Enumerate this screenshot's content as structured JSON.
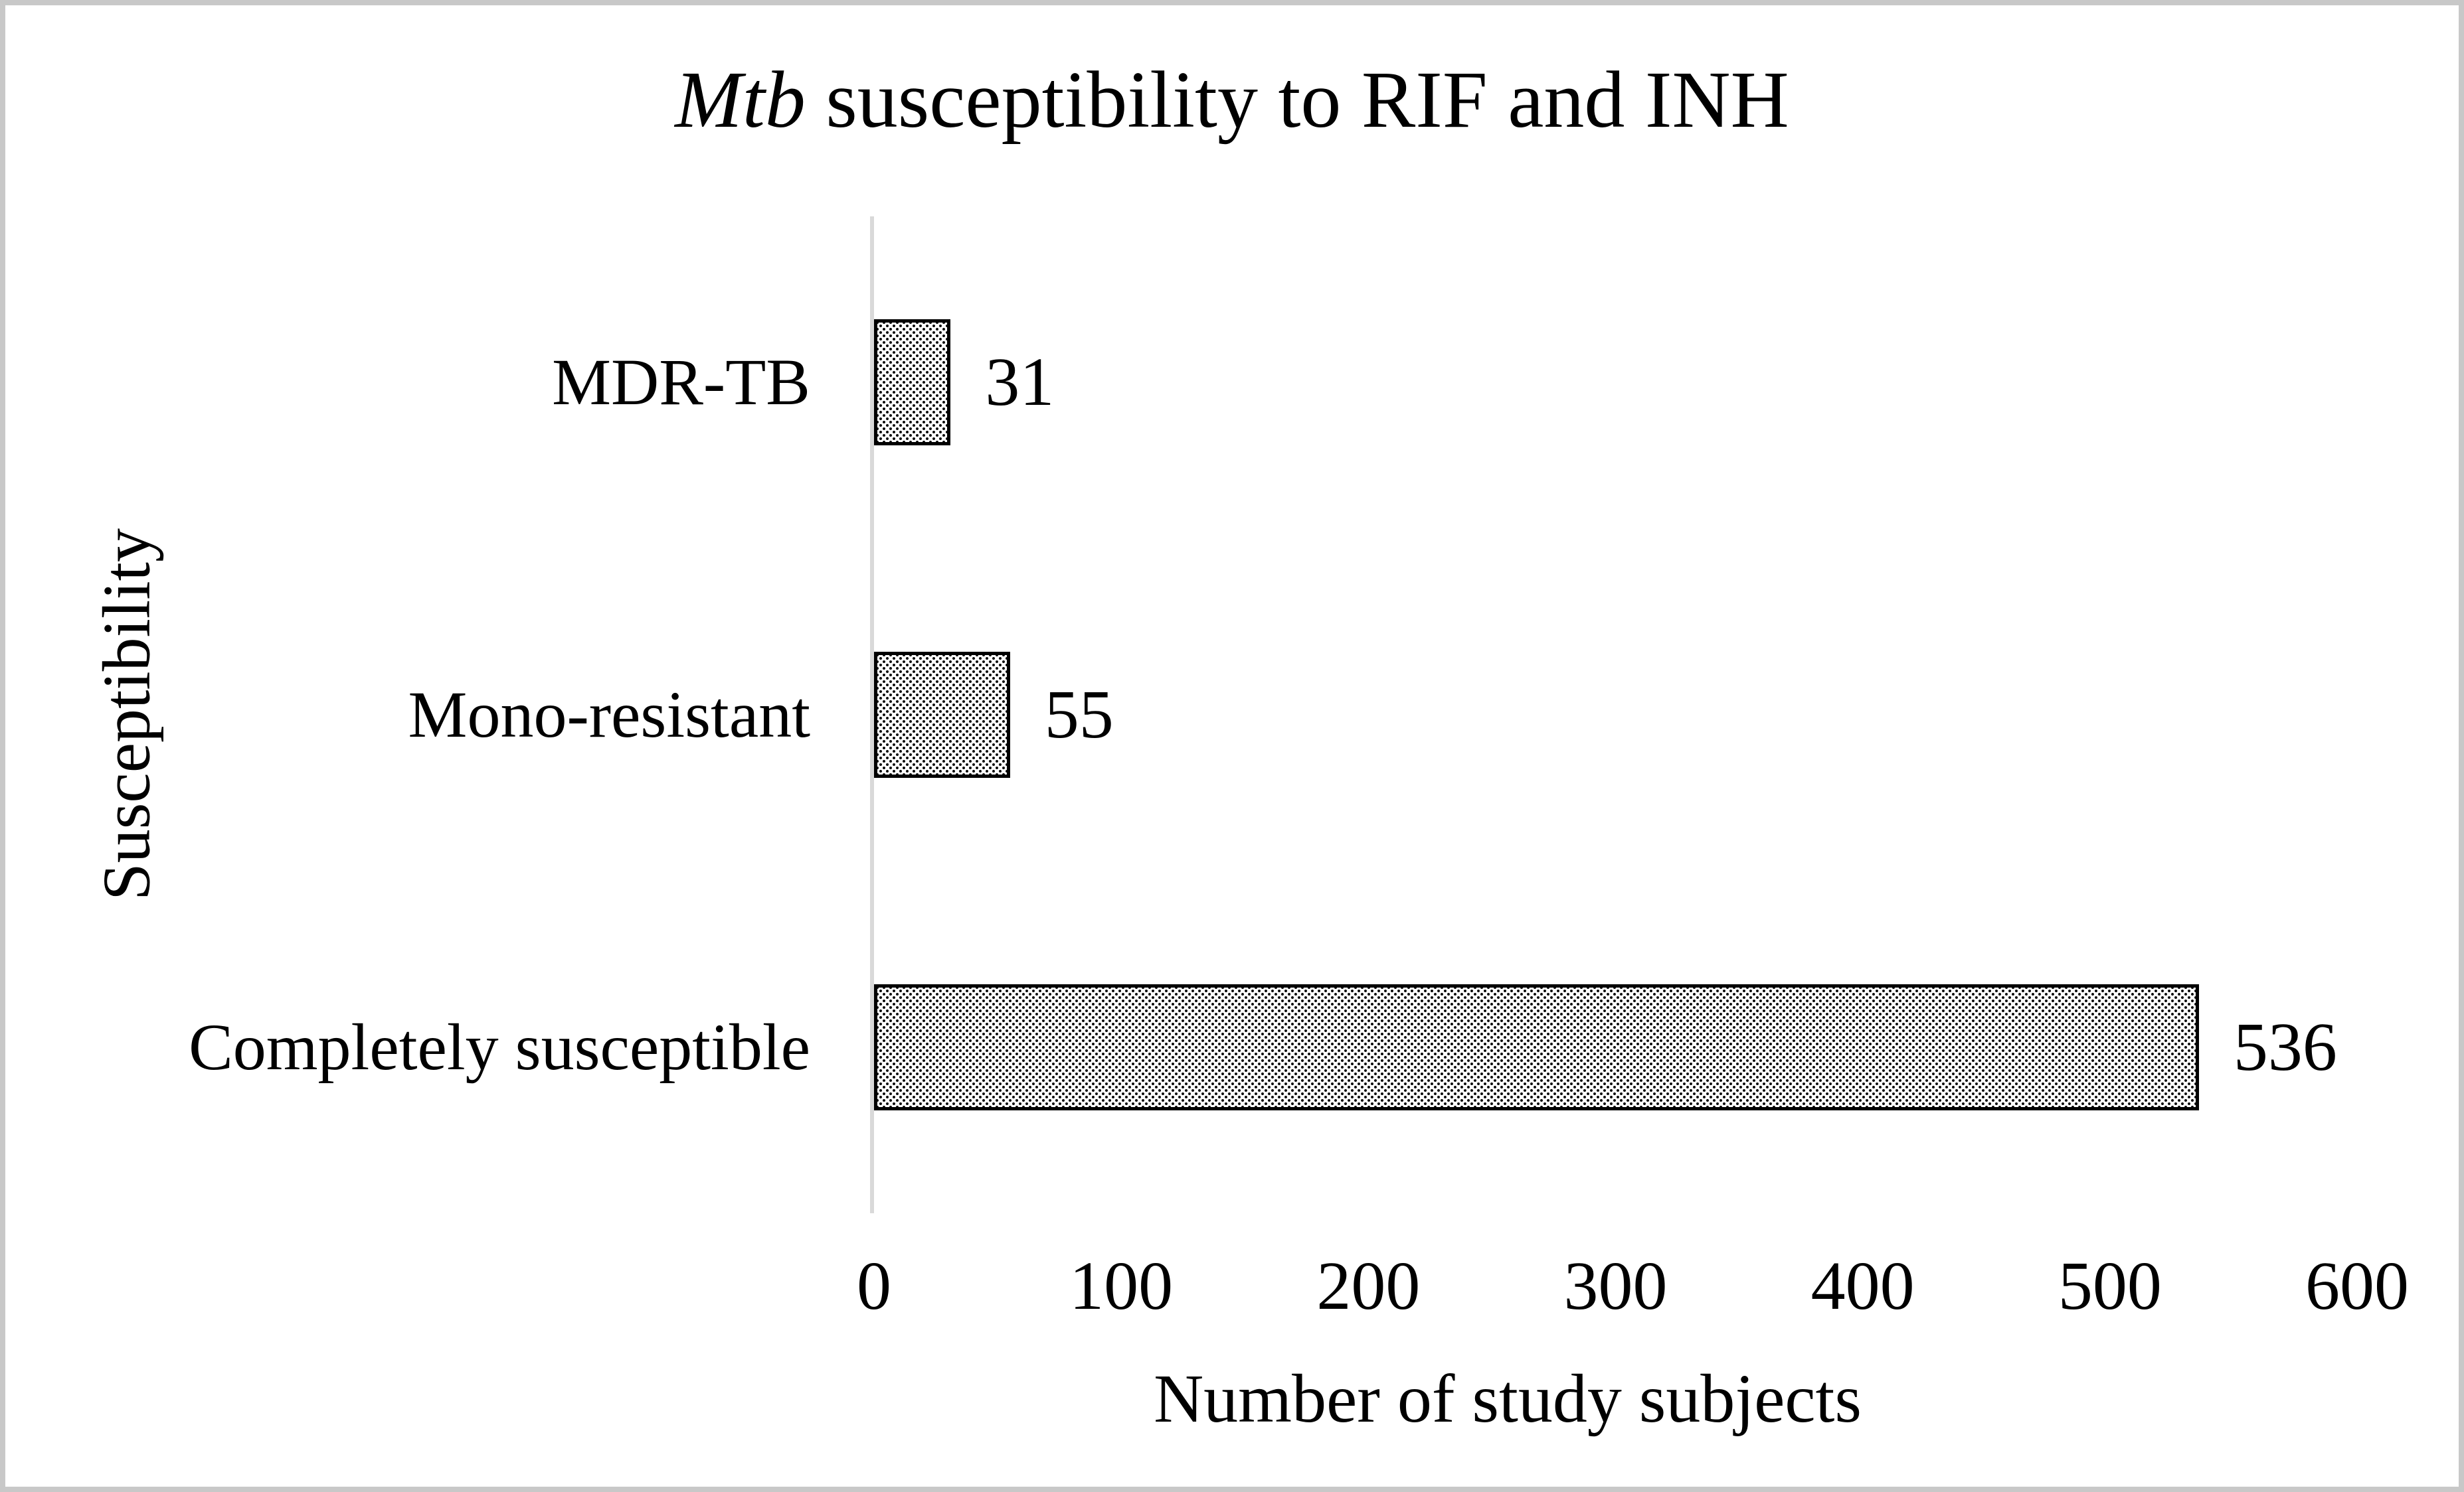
{
  "chart_data": {
    "type": "bar",
    "orientation": "horizontal",
    "title_italic": "Mtb",
    "title_rest": " susceptibility to RIF and INH",
    "title_full": "Mtb susceptibility to RIF and INH",
    "ylabel": "Susceptibility",
    "xlabel": "Number of study subjects",
    "categories": [
      "MDR-TB",
      "Mono-resistant",
      "Completely susceptible"
    ],
    "values": [
      31,
      55,
      536
    ],
    "xticks": [
      0,
      100,
      200,
      300,
      400,
      500,
      600
    ],
    "xlim": [
      0,
      600
    ],
    "grid": "off",
    "legend": "none",
    "bar_fill": "white with black polka-dot pattern",
    "bar_fill_color": "#ffffff",
    "bar_dot_color": "#000000",
    "bar_border_color": "#000000",
    "axis_line_color": "#d9d9d9",
    "text_color": "#000000",
    "figure_border_color": "#c8c8c8",
    "background_color": "#ffffff"
  }
}
